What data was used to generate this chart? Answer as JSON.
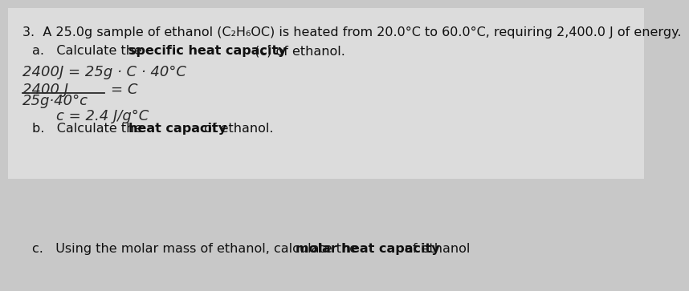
{
  "bg_color": "#c8c8c8",
  "paper_color": "#e8e8e8",
  "text_color": "#111111",
  "hw_color": "#2a2a2a",
  "title": "3.  A 25.0g sample of ethanol (C₂H₆OC) is heated from 20.0°C to 60.0°C, requiring 2,400.0 J of energy.",
  "part_a_plain": "a.   Calculate the ",
  "part_a_bold": "specific heat capacity",
  "part_a_end": " (c) of ethanol.",
  "hw1": "2400J = 25g · C · 40°C",
  "hw_num": "2400 J",
  "hw_den": "25g·40°c",
  "hw_eq": "= C",
  "hw_result": "c = 2.4 J/g°C",
  "part_b_plain": "b.   Calculate the ",
  "part_b_bold": "heat capacity",
  "part_b_end": " of ethanol.",
  "part_c_plain": "c.   Using the molar mass of ethanol, calculate the ",
  "part_c_bold": "molar heat capacity",
  "part_c_end": " of ethanol",
  "fs_main": 11.5,
  "fs_hw": 13
}
